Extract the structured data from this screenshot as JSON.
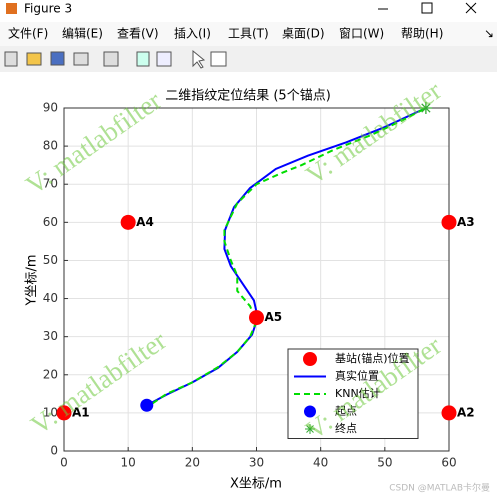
{
  "window": {
    "title": "Figure 3",
    "menu": [
      "文件(F)",
      "编辑(E)",
      "查看(V)",
      "插入(I)",
      "工具(T)",
      "桌面(D)",
      "窗口(W)",
      "帮助(H)"
    ]
  },
  "watermarks": [
    "V: matlabfilter",
    "V: matlabfilter",
    "V: matlabfilter",
    "V: matlabfilter"
  ],
  "credit": "CSDN @MATLAB卡尔曼",
  "chart_data": {
    "type": "line",
    "title": "二维指纹定位结果 (5个锚点)",
    "xlabel": "X坐标/m",
    "ylabel": "Y坐标/m",
    "xlim": [
      0,
      60
    ],
    "ylim": [
      0,
      90
    ],
    "xticks": [
      0,
      10,
      20,
      30,
      40,
      50,
      60
    ],
    "yticks": [
      0,
      10,
      20,
      30,
      40,
      50,
      60,
      70,
      80,
      90
    ],
    "grid": true,
    "legend": "lower right",
    "series": [
      {
        "name": "基站(锚点)位置",
        "color": "#ff0000",
        "style": "dot",
        "x": [
          0,
          60,
          60,
          10,
          30
        ],
        "values": [
          10,
          10,
          60,
          60,
          35
        ],
        "point_labels": [
          "A1",
          "A2",
          "A3",
          "A4",
          "A5"
        ]
      },
      {
        "name": "真实位置",
        "color": "#0000ff",
        "style": "solid",
        "x": [
          12.9,
          16,
          20,
          24,
          27,
          29.3,
          30.2,
          29.6,
          27.8,
          26,
          25,
          25.1,
          26.5,
          29,
          33,
          38,
          44,
          50,
          56.4
        ],
        "values": [
          12,
          14.8,
          18,
          21.8,
          26,
          30.5,
          35,
          39.5,
          44,
          48.5,
          53,
          58,
          64,
          69,
          74,
          77.5,
          81,
          85,
          90
        ]
      },
      {
        "name": "KNN估计",
        "color": "#00dd00",
        "style": "dashed",
        "x": [
          12.5,
          16,
          20,
          24,
          27,
          29,
          30,
          29,
          27,
          27,
          26,
          25,
          25,
          27,
          30,
          34,
          37,
          42,
          48,
          53,
          56.4
        ],
        "values": [
          11,
          15,
          18,
          22,
          26,
          30,
          34,
          38,
          42,
          46,
          50,
          55,
          58,
          65,
          70,
          73,
          75,
          79,
          83,
          87,
          90
        ]
      },
      {
        "name": "起点",
        "color": "#0000ff",
        "style": "dot",
        "x": [
          12.9
        ],
        "values": [
          12
        ]
      },
      {
        "name": "终点",
        "color": "#33aa33",
        "style": "star",
        "x": [
          56.4
        ],
        "values": [
          90
        ]
      }
    ]
  }
}
